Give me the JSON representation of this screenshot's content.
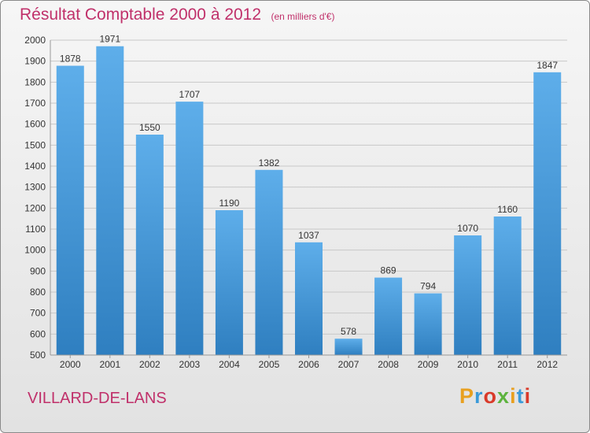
{
  "header": {
    "title": "Résultat Comptable 2000 à 2012",
    "subtitle": "(en milliers d'€)"
  },
  "footer": {
    "commune": "VILLARD-DE-LANS",
    "logo": "Proxiti"
  },
  "colors": {
    "title": "#c0306a",
    "bar_light": "#5eaeea",
    "bar_dark": "#2f7fc0",
    "grid": "#c8c8c8",
    "logo_letters": [
      "#e8a020",
      "#3a9ad9",
      "#d93a2a",
      "#5db33e",
      "#e8a020",
      "#3a9ad9",
      "#d93a2a"
    ]
  },
  "chart_data": {
    "type": "bar",
    "categories": [
      "2000",
      "2001",
      "2002",
      "2003",
      "2004",
      "2005",
      "2006",
      "2007",
      "2008",
      "2009",
      "2010",
      "2011",
      "2012"
    ],
    "values": [
      1878,
      1971,
      1550,
      1707,
      1190,
      1382,
      1037,
      578,
      869,
      794,
      1070,
      1160,
      1847
    ],
    "title": "Résultat Comptable 2000 à 2012",
    "subtitle": "(en milliers d'€)",
    "ylim": [
      500,
      2000
    ],
    "yticks": [
      500,
      600,
      700,
      800,
      900,
      1000,
      1100,
      1200,
      1300,
      1400,
      1500,
      1600,
      1700,
      1800,
      1900,
      2000
    ],
    "grid": true
  }
}
